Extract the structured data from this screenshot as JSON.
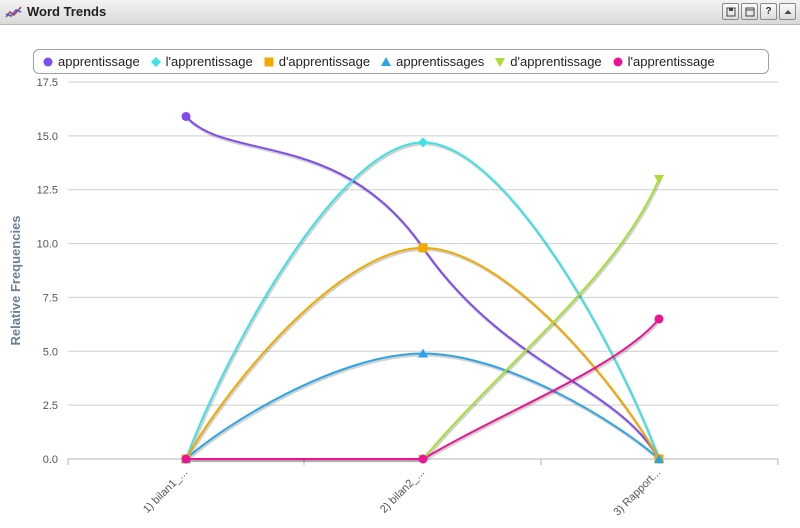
{
  "window": {
    "title": "Word Trends",
    "buttons": [
      {
        "name": "save-icon"
      },
      {
        "name": "window-icon"
      },
      {
        "label": "?",
        "name": "help-icon"
      },
      {
        "name": "collapse-icon"
      }
    ]
  },
  "chart_data": {
    "type": "line",
    "title": "",
    "xlabel": "",
    "ylabel": "Relative Frequencies",
    "ylim": [
      0,
      17.5
    ],
    "yticks": [
      "0.0",
      "2.5",
      "5.0",
      "7.5",
      "10.0",
      "12.5",
      "15.0",
      "17.5"
    ],
    "ytick_values": [
      0,
      2.5,
      5,
      7.5,
      10,
      12.5,
      15,
      17.5
    ],
    "categories": [
      "1) bilan1_...",
      "2) bilan2_...",
      "3) Rapport..."
    ],
    "grid": true,
    "legend_position": "top",
    "series": [
      {
        "name": "apprentissage",
        "color": "#7e4cf0",
        "marker": "circle",
        "values": [
          15.9,
          9.8,
          0
        ]
      },
      {
        "name": "l'apprentissage",
        "color": "#3de2e6",
        "marker": "diamond",
        "values": [
          0,
          14.7,
          0
        ]
      },
      {
        "name": "d'apprentissage",
        "color": "#f2a900",
        "marker": "square",
        "values": [
          0,
          9.8,
          0
        ]
      },
      {
        "name": "apprentissages",
        "color": "#2ea4e8",
        "marker": "triangle",
        "values": [
          0,
          4.9,
          0
        ]
      },
      {
        "name": "d'apprentissage",
        "color": "#a6df31",
        "marker": "triangle-down",
        "values": [
          0,
          0,
          13.0
        ]
      },
      {
        "name": "l'apprentissage",
        "color": "#ec1394",
        "marker": "circle",
        "values": [
          0,
          0,
          6.5
        ]
      }
    ]
  }
}
